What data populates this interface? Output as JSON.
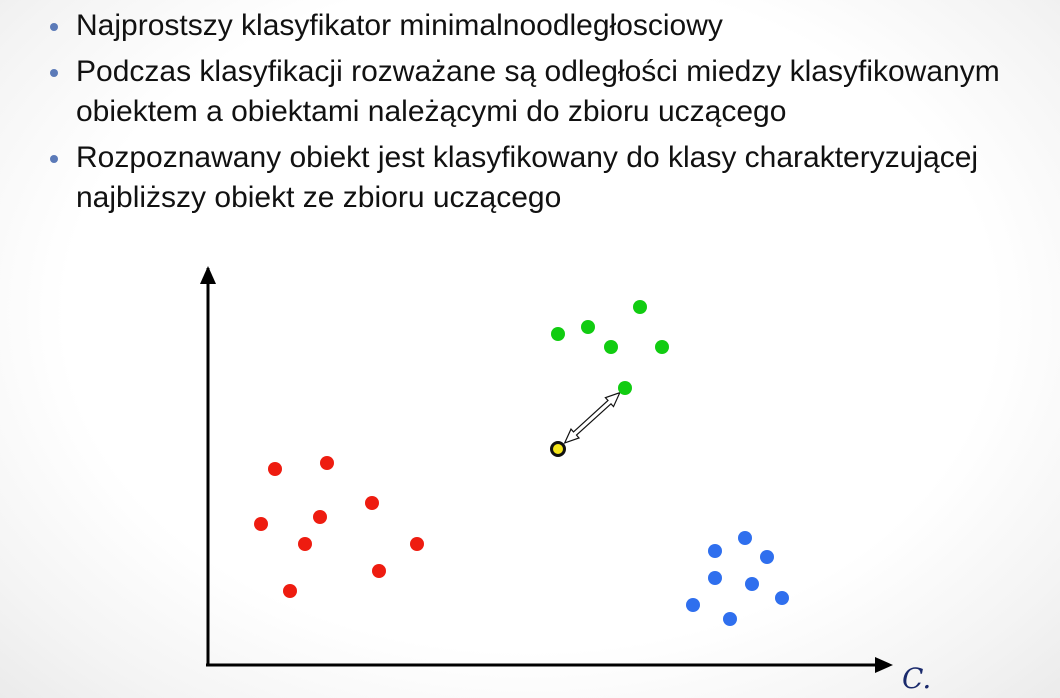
{
  "bullets": [
    {
      "text": "Najprostszy klasyfikator minimalnoodległosciowy"
    },
    {
      "text": "Podczas klasyfikacji rozważane są odległości miedzy klasyfikowanym obiektem a obiektami należącymi do zbioru uczącego"
    },
    {
      "text": "Rozpoznawany obiekt jest klasyfikowany do klasy charakteryzującej najbliższy obiekt ze zbioru uczącego"
    }
  ],
  "colors": {
    "bullet": "#5b7ab8",
    "axis": "#000000",
    "class_red": "#ee1c10",
    "class_green": "#11cc11",
    "class_blue": "#2f6fee",
    "query_fill": "#f5e61a",
    "query_stroke": "#111111"
  },
  "corner_mark": "C.",
  "chart_data": {
    "type": "scatter",
    "axes": {
      "x_arrow": true,
      "y_arrow": true,
      "tick_labels": false
    },
    "series": [
      {
        "class": "red",
        "points": [
          [
            275,
            469
          ],
          [
            327,
            463
          ],
          [
            372,
            503
          ],
          [
            261,
            524
          ],
          [
            320,
            517
          ],
          [
            305,
            544
          ],
          [
            417,
            544
          ],
          [
            379,
            571
          ],
          [
            290,
            591
          ]
        ]
      },
      {
        "class": "green",
        "points": [
          [
            640,
            307
          ],
          [
            588,
            327
          ],
          [
            558,
            334
          ],
          [
            611,
            347
          ],
          [
            662,
            347
          ],
          [
            625,
            388
          ]
        ]
      },
      {
        "class": "blue",
        "points": [
          [
            745,
            538
          ],
          [
            715,
            551
          ],
          [
            767,
            557
          ],
          [
            715,
            578
          ],
          [
            752,
            584
          ],
          [
            782,
            598
          ],
          [
            693,
            605
          ],
          [
            730,
            619
          ]
        ]
      }
    ],
    "query_point": [
      558,
      449
    ],
    "nearest_neighbor": [
      625,
      388
    ]
  }
}
